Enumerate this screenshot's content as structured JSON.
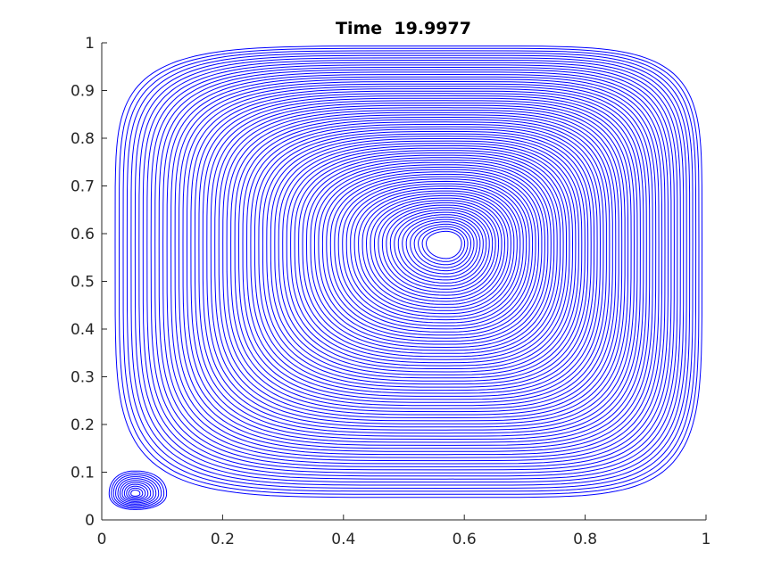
{
  "chart_data": {
    "type": "streamline",
    "title": "Time  19.9977",
    "xlabel": "",
    "ylabel": "",
    "xlim": [
      0,
      1
    ],
    "ylim": [
      0,
      1
    ],
    "x_ticks": [
      "0",
      "0.2",
      "0.4",
      "0.6",
      "0.8",
      "1"
    ],
    "y_ticks": [
      "0",
      "0.1",
      "0.2",
      "0.3",
      "0.4",
      "0.5",
      "0.6",
      "0.7",
      "0.8",
      "0.9",
      "1"
    ],
    "x_tick_values": [
      0,
      0.2,
      0.4,
      0.6,
      0.8,
      1
    ],
    "y_tick_values": [
      0,
      0.1,
      0.2,
      0.3,
      0.4,
      0.5,
      0.6,
      0.7,
      0.8,
      0.9,
      1
    ],
    "grid": false,
    "legend": "none",
    "line_color": "#0000ff",
    "vortices": [
      {
        "center": [
          0.57,
          0.58
        ],
        "span_left": 0.55,
        "span_right": 0.425,
        "span_up": 0.415,
        "span_down": 0.535
      },
      {
        "center": [
          0.055,
          0.055
        ],
        "span_left": 0.045,
        "span_right": 0.055,
        "span_up": 0.05,
        "span_down": 0.035
      }
    ]
  }
}
